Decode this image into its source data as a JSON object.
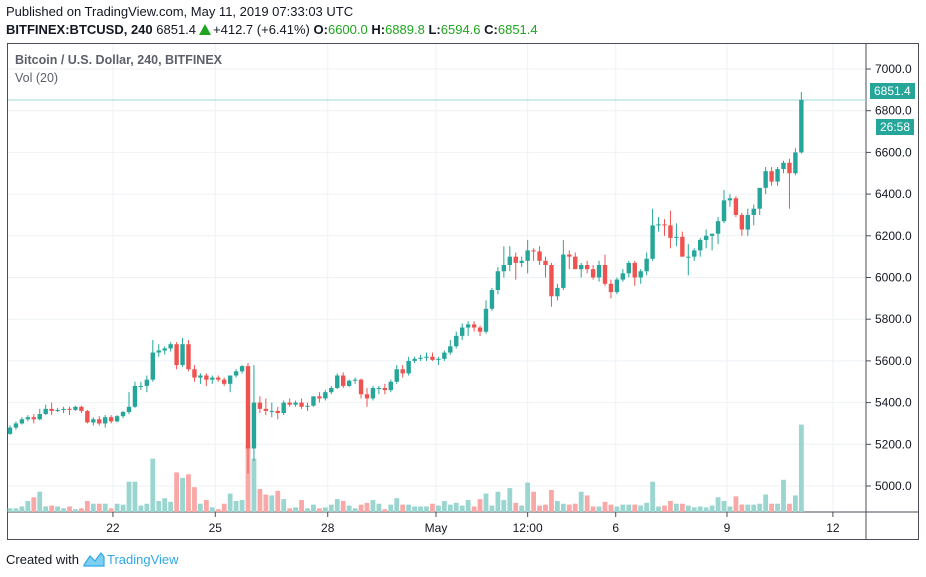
{
  "header": {
    "published": "Published on TradingView.com, May 11, 2019 07:33:03 UTC",
    "symbol": "BITFINEX:BTCUSD, 240",
    "last": "6851.4",
    "change": "+412.7 (+6.41%)",
    "o_label": "O:",
    "o": "6600.0",
    "h_label": "H:",
    "h": "6889.8",
    "l_label": "L:",
    "l": "6594.6",
    "c_label": "C:",
    "c": "6851.4"
  },
  "legend": {
    "title": "Bitcoin / U.S. Dollar, 240, BITFINEX",
    "volume": "Vol (20)"
  },
  "price_label": {
    "value": "6851.4",
    "countdown": "26:58"
  },
  "footer": {
    "created_with": "Created with",
    "brand": "TradingView"
  },
  "colors": {
    "up": "#26a69a",
    "down": "#ef5350",
    "vol_up": "#9ad6cf",
    "vol_down": "#f8a9a7",
    "grid": "#eef2f6"
  },
  "chart_data": {
    "type": "candlestick",
    "title": "Bitcoin / U.S. Dollar, 240, BITFINEX",
    "ylim": [
      4880,
      7120
    ],
    "y_ticks": [
      "5000.0",
      "5200.0",
      "5400.0",
      "5600.0",
      "5800.0",
      "6000.0",
      "6200.0",
      "6400.0",
      "6600.0",
      "6800.0",
      "7000.0"
    ],
    "x_ticks": [
      {
        "label": "22",
        "at_index": 17.3
      },
      {
        "label": "25",
        "at_index": 34.5
      },
      {
        "label": "28",
        "at_index": 53.4
      },
      {
        "label": "May",
        "at_index": 71.6
      },
      {
        "label": "12:00",
        "at_index": 87
      },
      {
        "label": "6",
        "at_index": 101.8
      },
      {
        "label": "9",
        "at_index": 120.5
      },
      {
        "label": "12",
        "at_index": 138.3
      }
    ],
    "last_price": 6851.4,
    "fields": [
      "open",
      "high",
      "low",
      "close",
      "volume"
    ],
    "candles": [
      [
        5250,
        5290,
        5245,
        5280,
        4
      ],
      [
        5280,
        5310,
        5270,
        5300,
        4
      ],
      [
        5300,
        5330,
        5295,
        5320,
        6
      ],
      [
        5320,
        5340,
        5310,
        5330,
        12
      ],
      [
        5330,
        5345,
        5300,
        5320,
        16
      ],
      [
        5320,
        5370,
        5315,
        5345,
        22
      ],
      [
        5345,
        5390,
        5340,
        5370,
        6
      ],
      [
        5370,
        5400,
        5340,
        5360,
        7
      ],
      [
        5360,
        5375,
        5355,
        5365,
        6
      ],
      [
        5365,
        5380,
        5350,
        5370,
        4
      ],
      [
        5370,
        5380,
        5340,
        5365,
        6
      ],
      [
        5365,
        5385,
        5360,
        5380,
        3
      ],
      [
        5380,
        5385,
        5350,
        5360,
        4
      ],
      [
        5360,
        5365,
        5300,
        5305,
        12
      ],
      [
        5305,
        5330,
        5290,
        5320,
        9
      ],
      [
        5320,
        5335,
        5290,
        5300,
        9
      ],
      [
        5300,
        5340,
        5280,
        5330,
        9
      ],
      [
        5330,
        5340,
        5300,
        5310,
        4
      ],
      [
        5310,
        5340,
        5305,
        5335,
        9
      ],
      [
        5335,
        5360,
        5325,
        5355,
        8
      ],
      [
        5355,
        5450,
        5345,
        5380,
        33
      ],
      [
        5380,
        5500,
        5375,
        5480,
        33
      ],
      [
        5480,
        5500,
        5460,
        5480,
        7
      ],
      [
        5480,
        5530,
        5450,
        5510,
        9
      ],
      [
        5510,
        5700,
        5500,
        5640,
        58
      ],
      [
        5640,
        5680,
        5620,
        5650,
        12
      ],
      [
        5650,
        5670,
        5630,
        5660,
        15
      ],
      [
        5660,
        5690,
        5645,
        5680,
        11
      ],
      [
        5680,
        5690,
        5560,
        5580,
        43
      ],
      [
        5580,
        5710,
        5570,
        5680,
        37
      ],
      [
        5680,
        5700,
        5550,
        5560,
        41
      ],
      [
        5560,
        5580,
        5500,
        5520,
        27
      ],
      [
        5520,
        5540,
        5490,
        5530,
        9
      ],
      [
        5530,
        5540,
        5480,
        5510,
        13
      ],
      [
        5510,
        5530,
        5490,
        5520,
        5
      ],
      [
        5520,
        5530,
        5500,
        5510,
        3
      ],
      [
        5510,
        5520,
        5480,
        5490,
        9
      ],
      [
        5490,
        5530,
        5450,
        5530,
        20
      ],
      [
        5530,
        5560,
        5520,
        5550,
        12
      ],
      [
        5550,
        5580,
        5540,
        5575,
        13
      ],
      [
        5575,
        5590,
        5060,
        5180,
        72
      ],
      [
        5180,
        5580,
        5120,
        5400,
        58
      ],
      [
        5400,
        5430,
        5350,
        5370,
        25
      ],
      [
        5370,
        5420,
        5340,
        5360,
        19
      ],
      [
        5360,
        5400,
        5330,
        5360,
        18
      ],
      [
        5360,
        5380,
        5320,
        5350,
        23
      ],
      [
        5350,
        5410,
        5340,
        5400,
        14
      ],
      [
        5400,
        5420,
        5380,
        5390,
        4
      ],
      [
        5390,
        5410,
        5380,
        5400,
        5
      ],
      [
        5400,
        5420,
        5370,
        5380,
        13
      ],
      [
        5380,
        5400,
        5360,
        5385,
        4
      ],
      [
        5385,
        5430,
        5380,
        5430,
        8
      ],
      [
        5430,
        5450,
        5400,
        5420,
        4
      ],
      [
        5420,
        5460,
        5410,
        5450,
        5
      ],
      [
        5450,
        5480,
        5440,
        5470,
        8
      ],
      [
        5470,
        5540,
        5465,
        5530,
        14
      ],
      [
        5530,
        5545,
        5470,
        5480,
        12
      ],
      [
        5480,
        5510,
        5475,
        5505,
        7
      ],
      [
        5505,
        5520,
        5490,
        5510,
        4
      ],
      [
        5510,
        5515,
        5420,
        5440,
        8
      ],
      [
        5440,
        5470,
        5380,
        5420,
        10
      ],
      [
        5420,
        5480,
        5410,
        5470,
        13
      ],
      [
        5470,
        5480,
        5440,
        5470,
        9
      ],
      [
        5470,
        5490,
        5440,
        5460,
        3
      ],
      [
        5460,
        5510,
        5450,
        5500,
        8
      ],
      [
        5500,
        5580,
        5490,
        5560,
        15
      ],
      [
        5560,
        5580,
        5520,
        5540,
        8
      ],
      [
        5540,
        5620,
        5530,
        5600,
        8
      ],
      [
        5600,
        5620,
        5590,
        5610,
        6
      ],
      [
        5610,
        5630,
        5600,
        5615,
        6
      ],
      [
        5615,
        5640,
        5600,
        5620,
        6
      ],
      [
        5620,
        5640,
        5600,
        5605,
        9
      ],
      [
        5605,
        5620,
        5580,
        5610,
        7
      ],
      [
        5610,
        5650,
        5600,
        5640,
        12
      ],
      [
        5640,
        5700,
        5630,
        5670,
        8
      ],
      [
        5670,
        5740,
        5660,
        5720,
        10
      ],
      [
        5720,
        5780,
        5700,
        5760,
        7
      ],
      [
        5760,
        5790,
        5720,
        5775,
        13
      ],
      [
        5775,
        5790,
        5740,
        5760,
        6
      ],
      [
        5760,
        5770,
        5720,
        5740,
        14
      ],
      [
        5740,
        5890,
        5730,
        5850,
        20
      ],
      [
        5850,
        5950,
        5840,
        5940,
        7
      ],
      [
        5940,
        6050,
        5920,
        6030,
        22
      ],
      [
        6030,
        6150,
        6000,
        6060,
        13
      ],
      [
        6060,
        6150,
        6030,
        6100,
        26
      ],
      [
        6100,
        6120,
        5990,
        6070,
        10
      ],
      [
        6070,
        6100,
        6050,
        6080,
        7
      ],
      [
        6080,
        6180,
        6020,
        6130,
        32
      ],
      [
        6130,
        6140,
        6080,
        6125,
        22
      ],
      [
        6125,
        6150,
        6060,
        6080,
        7
      ],
      [
        6080,
        6100,
        6000,
        6060,
        8
      ],
      [
        6060,
        6070,
        5860,
        5910,
        24
      ],
      [
        5910,
        5970,
        5890,
        5950,
        12
      ],
      [
        5950,
        6180,
        5940,
        6110,
        9
      ],
      [
        6110,
        6130,
        6040,
        6100,
        8
      ],
      [
        6100,
        6120,
        6040,
        6040,
        9
      ],
      [
        6040,
        6070,
        6000,
        6060,
        22
      ],
      [
        6060,
        6080,
        6020,
        6040,
        18
      ],
      [
        6040,
        6060,
        5990,
        6000,
        6
      ],
      [
        6000,
        6080,
        5980,
        6060,
        6
      ],
      [
        6060,
        6110,
        5960,
        5970,
        11
      ],
      [
        5970,
        5990,
        5900,
        5930,
        8
      ],
      [
        5930,
        6000,
        5920,
        5990,
        6
      ],
      [
        5990,
        6040,
        5980,
        6020,
        8
      ],
      [
        6020,
        6080,
        6000,
        6070,
        8
      ],
      [
        6070,
        6080,
        5960,
        6000,
        8
      ],
      [
        6000,
        6040,
        5970,
        6030,
        7
      ],
      [
        6030,
        6120,
        6010,
        6090,
        10
      ],
      [
        6090,
        6330,
        6080,
        6250,
        33
      ],
      [
        6250,
        6290,
        6220,
        6255,
        6
      ],
      [
        6255,
        6280,
        6200,
        6250,
        7
      ],
      [
        6250,
        6320,
        6140,
        6190,
        12
      ],
      [
        6190,
        6260,
        6150,
        6195,
        9
      ],
      [
        6195,
        6220,
        6100,
        6100,
        9
      ],
      [
        6100,
        6160,
        6010,
        6100,
        7
      ],
      [
        6100,
        6140,
        6080,
        6130,
        5
      ],
      [
        6130,
        6190,
        6100,
        6180,
        6
      ],
      [
        6180,
        6230,
        6140,
        6200,
        5
      ],
      [
        6200,
        6210,
        6130,
        6210,
        7
      ],
      [
        6210,
        6290,
        6160,
        6270,
        16
      ],
      [
        6270,
        6420,
        6260,
        6370,
        12
      ],
      [
        6370,
        6400,
        6340,
        6380,
        6
      ],
      [
        6380,
        6390,
        6290,
        6300,
        17
      ],
      [
        6300,
        6310,
        6200,
        6230,
        8
      ],
      [
        6230,
        6330,
        6200,
        6300,
        8
      ],
      [
        6300,
        6350,
        6250,
        6330,
        8
      ],
      [
        6330,
        6420,
        6300,
        6430,
        9
      ],
      [
        6430,
        6530,
        6400,
        6510,
        19
      ],
      [
        6510,
        6530,
        6440,
        6460,
        9
      ],
      [
        6460,
        6530,
        6440,
        6520,
        9
      ],
      [
        6520,
        6560,
        6500,
        6550,
        35
      ],
      [
        6550,
        6570,
        6330,
        6500,
        9
      ],
      [
        6500,
        6620,
        6490,
        6600,
        18
      ],
      [
        6600,
        6889.8,
        6594.6,
        6851.4,
        95
      ]
    ]
  }
}
